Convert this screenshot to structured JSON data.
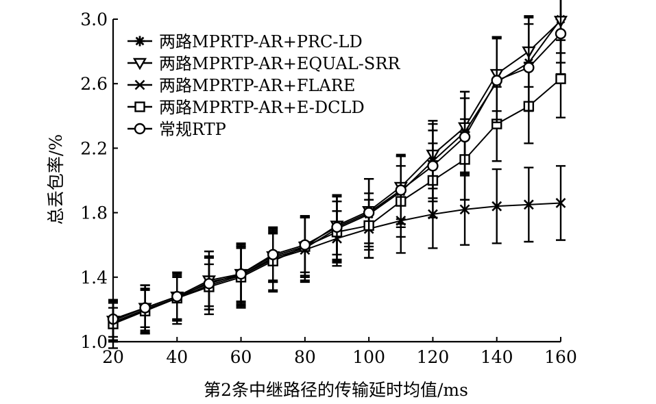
{
  "chart_data": {
    "type": "line",
    "title": "",
    "xlabel": "第2条中继路径的传输延时均值/ms",
    "ylabel": "总丢包率/%",
    "xlim": [
      20,
      160
    ],
    "ylim": [
      1.0,
      3.0
    ],
    "xticks": [
      20,
      40,
      60,
      80,
      100,
      120,
      140,
      160
    ],
    "yticks": [
      1.0,
      1.4,
      1.8,
      2.2,
      2.6,
      3.0
    ],
    "xtick_labels": [
      "20",
      "40",
      "60",
      "80",
      "100",
      "120",
      "140",
      "160"
    ],
    "ytick_labels": [
      "1.0",
      "1.4",
      "1.8",
      "2.2",
      "2.6",
      "3.0"
    ],
    "grid": false,
    "legend_position": "top-left",
    "x": [
      20,
      30,
      40,
      50,
      60,
      70,
      80,
      90,
      100,
      110,
      120,
      130,
      140,
      150,
      160
    ],
    "series": [
      {
        "name": "两路MPRTP-AR+PRC-LD",
        "marker": "star",
        "values": [
          1.11,
          1.2,
          1.27,
          1.37,
          1.41,
          1.52,
          1.58,
          1.7,
          1.79,
          1.93,
          2.12,
          2.3,
          2.61,
          2.73,
          3.0
        ],
        "errors": [
          0.15,
          0.15,
          0.14,
          0.15,
          0.2,
          0.15,
          0.2,
          0.2,
          0.22,
          0.22,
          0.23,
          0.25,
          0.28,
          0.28,
          0.27
        ]
      },
      {
        "name": "两路MPRTP-AR+EQUAL-SRR",
        "marker": "triangle-down",
        "values": [
          1.13,
          1.21,
          1.28,
          1.38,
          1.42,
          1.53,
          1.59,
          1.72,
          1.81,
          1.96,
          2.16,
          2.33,
          2.66,
          2.8,
          2.99
        ],
        "errors": [
          0.13,
          0.14,
          0.15,
          0.18,
          0.18,
          0.16,
          0.18,
          0.18,
          0.2,
          0.2,
          0.21,
          0.22,
          0.23,
          0.22,
          0.2
        ]
      },
      {
        "name": "两路MPRTP-AR+FLARE",
        "marker": "x",
        "values": [
          1.12,
          1.2,
          1.27,
          1.35,
          1.41,
          1.51,
          1.57,
          1.64,
          1.7,
          1.75,
          1.79,
          1.82,
          1.84,
          1.85,
          1.86
        ],
        "errors": [
          0.12,
          0.15,
          0.16,
          0.18,
          0.18,
          0.2,
          0.2,
          0.17,
          0.18,
          0.2,
          0.21,
          0.22,
          0.23,
          0.23,
          0.23
        ]
      },
      {
        "name": "两路MPRTP-AR+E-DCLD",
        "marker": "square",
        "values": [
          1.11,
          1.19,
          1.27,
          1.34,
          1.4,
          1.5,
          1.59,
          1.68,
          1.72,
          1.87,
          2.0,
          2.13,
          2.35,
          2.46,
          2.63
        ],
        "errors": [
          0.1,
          0.13,
          0.13,
          0.14,
          0.18,
          0.18,
          0.19,
          0.19,
          0.2,
          0.22,
          0.23,
          0.25,
          0.23,
          0.23,
          0.24
        ]
      },
      {
        "name": "常规RTP",
        "marker": "circle",
        "values": [
          1.14,
          1.21,
          1.28,
          1.36,
          1.42,
          1.54,
          1.6,
          1.71,
          1.8,
          1.94,
          2.09,
          2.27,
          2.62,
          2.7,
          2.91
        ],
        "errors": [
          0.11,
          0.12,
          0.14,
          0.16,
          0.17,
          0.16,
          0.17,
          0.2,
          0.21,
          0.21,
          0.22,
          0.24,
          0.26,
          0.27,
          0.25
        ]
      }
    ]
  }
}
